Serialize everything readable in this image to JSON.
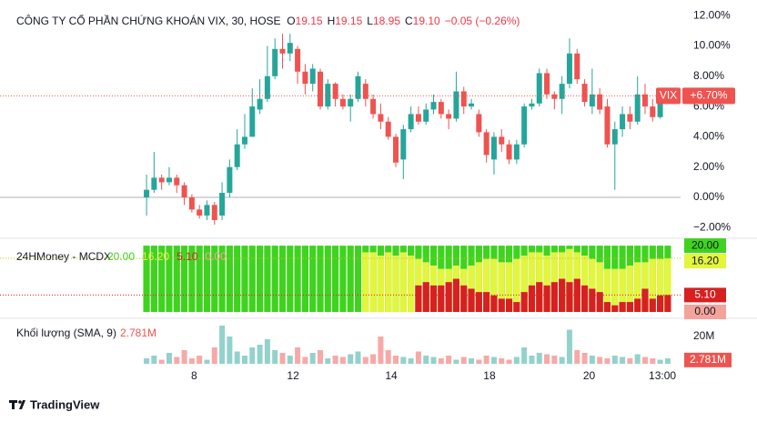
{
  "header": {
    "title": "CÔNG TY CỔ PHẦN CHỨNG KHOÁN VIX, 30, HOSE",
    "ohlc": [
      {
        "label": "O",
        "value": "19.15"
      },
      {
        "label": "H",
        "value": "19.15"
      },
      {
        "label": "L",
        "value": "18.95"
      },
      {
        "label": "C",
        "value": "19.10"
      }
    ],
    "change": "−0.05 (−0.26%)"
  },
  "chart_data": [
    {
      "type": "candlestick",
      "symbol": "VIX",
      "up_color": "#26a69a",
      "down_color": "#ef5350",
      "open": [
        0.0,
        0.5,
        1.3,
        1.0,
        1.3,
        0.8,
        0.0,
        -0.8,
        -1.2,
        -0.5,
        -1.2,
        0.3,
        2.0,
        3.5,
        4.0,
        5.8,
        6.5,
        8.0,
        9.8,
        9.5,
        9.8,
        8.3,
        7.5,
        8.3,
        6.0,
        7.5,
        6.5,
        6.0,
        6.5,
        7.5,
        6.5,
        5.5,
        5.0,
        4.0,
        2.5,
        4.5,
        5.5,
        5.0,
        5.8,
        6.3,
        5.5,
        5.2,
        7.0,
        6.0,
        5.5,
        4.3,
        2.5,
        4.0,
        3.5,
        2.5,
        3.5,
        6.0,
        6.2,
        8.2,
        6.8,
        6.5,
        7.5,
        9.5,
        7.5,
        6.0,
        6.8,
        6.0,
        3.5,
        4.5,
        5.5,
        5.0,
        6.8,
        6.0,
        5.3,
        6.5
      ],
      "high": [
        1.5,
        3.0,
        1.5,
        2.0,
        1.5,
        1.0,
        0.2,
        -0.5,
        -0.2,
        -0.3,
        1.0,
        2.5,
        4.5,
        5.5,
        7.2,
        7.8,
        10.0,
        10.5,
        10.8,
        10.8,
        10.0,
        8.8,
        8.8,
        8.5,
        7.8,
        7.6,
        6.8,
        6.8,
        8.3,
        7.8,
        6.8,
        6.2,
        5.3,
        4.2,
        4.8,
        6.0,
        6.0,
        6.2,
        6.8,
        6.5,
        5.8,
        8.3,
        7.3,
        6.5,
        5.8,
        4.5,
        4.3,
        4.5,
        3.8,
        3.8,
        6.2,
        6.5,
        8.5,
        8.5,
        7.0,
        8.0,
        10.5,
        9.8,
        7.8,
        8.5,
        7.2,
        6.5,
        5.0,
        6.0,
        6.0,
        8.0,
        7.5,
        6.5,
        7.0,
        7.0
      ],
      "low": [
        -1.2,
        0.3,
        0.5,
        0.8,
        0.3,
        -0.5,
        -1.0,
        -1.4,
        -1.5,
        -1.8,
        -1.5,
        0.0,
        1.8,
        3.2,
        4.0,
        5.5,
        6.3,
        7.8,
        8.5,
        9.0,
        7.5,
        6.8,
        7.0,
        5.8,
        5.8,
        6.0,
        5.8,
        5.0,
        6.3,
        6.0,
        5.2,
        4.5,
        3.8,
        2.0,
        1.2,
        4.3,
        4.8,
        4.8,
        5.5,
        5.2,
        4.5,
        5.0,
        5.5,
        5.8,
        4.0,
        2.3,
        1.5,
        3.0,
        2.2,
        2.2,
        3.3,
        5.8,
        6.0,
        6.5,
        5.8,
        5.5,
        7.2,
        7.5,
        6.0,
        5.5,
        5.5,
        3.3,
        0.5,
        4.0,
        4.5,
        4.8,
        5.5,
        5.0,
        5.2,
        6.3
      ],
      "close": [
        0.5,
        1.3,
        1.0,
        1.3,
        0.8,
        0.0,
        -0.8,
        -1.2,
        -0.5,
        -1.5,
        0.3,
        2.0,
        3.5,
        4.0,
        6.0,
        6.5,
        8.0,
        9.8,
        9.5,
        10.2,
        8.3,
        7.5,
        8.5,
        6.0,
        7.5,
        6.5,
        6.0,
        6.5,
        8.0,
        6.5,
        5.5,
        5.0,
        4.0,
        2.3,
        4.5,
        5.5,
        5.0,
        5.8,
        6.3,
        5.5,
        5.2,
        7.0,
        6.0,
        6.2,
        4.3,
        2.8,
        4.0,
        3.5,
        2.5,
        3.5,
        6.0,
        6.2,
        8.2,
        6.8,
        6.5,
        7.5,
        9.5,
        7.8,
        6.3,
        6.8,
        5.8,
        3.5,
        4.5,
        5.5,
        5.0,
        6.8,
        6.0,
        5.3,
        6.5,
        6.7
      ],
      "ylim": [
        -2.46,
        12.43
      ],
      "yticks": [
        {
          "value": 12,
          "label": "12.00%"
        },
        {
          "value": 10,
          "label": "10.00%"
        },
        {
          "value": 8,
          "label": "8.00%"
        },
        {
          "value": 6,
          "label": "6.00%"
        },
        {
          "value": 4,
          "label": "4.00%"
        },
        {
          "value": 2,
          "label": "2.00%"
        },
        {
          "value": 0,
          "label": "0.00%"
        },
        {
          "value": -2,
          "label": "−2.00%"
        }
      ],
      "xlim": [
        -19.4,
        70.7
      ],
      "xticks": [
        {
          "value": 6.3,
          "label": "8"
        },
        {
          "value": 19.4,
          "label": "12"
        },
        {
          "value": 32.4,
          "label": "14"
        },
        {
          "value": 45.4,
          "label": "18"
        },
        {
          "value": 58.6,
          "label": "20"
        },
        {
          "value": 68.3,
          "label": "13:00"
        }
      ],
      "last": {
        "value": 6.7,
        "label": "+6.70%"
      }
    },
    {
      "type": "bar",
      "title": "24HMoney - MCDX",
      "ylim": [
        0,
        20.3
      ],
      "series": [
        {
          "color": "#3fd31f",
          "values": [
            20,
            20,
            20,
            20,
            20,
            20,
            20,
            20,
            20,
            20,
            20,
            20,
            20,
            20,
            20,
            20,
            20,
            20,
            20,
            20,
            20,
            20,
            20,
            20,
            20,
            20,
            20,
            20,
            20,
            20,
            20,
            20,
            20,
            20,
            20,
            20,
            20,
            20,
            20,
            20,
            20,
            20,
            20,
            20,
            20,
            20,
            20,
            20,
            20,
            20,
            20,
            20,
            20,
            20,
            20,
            20,
            20,
            20,
            20,
            20,
            20,
            20,
            20,
            20,
            20,
            20,
            20,
            20,
            20,
            20
          ]
        },
        {
          "color": "#e3f53c",
          "values": [
            0,
            0,
            0,
            0,
            0,
            0,
            0,
            0,
            0,
            0,
            0,
            0,
            0,
            0,
            0,
            0,
            0,
            0,
            0,
            0,
            0,
            0,
            0,
            0,
            0,
            0,
            0,
            0,
            0,
            18,
            18,
            17,
            18,
            17,
            18,
            17,
            16,
            15,
            14,
            13,
            13,
            14,
            13,
            14,
            15,
            16,
            16,
            15,
            15,
            16,
            17,
            18,
            18,
            17,
            18,
            18,
            19,
            18,
            17,
            16,
            15,
            13,
            13,
            13,
            14,
            15,
            15,
            16,
            16,
            16.2
          ]
        },
        {
          "color": "#d82020",
          "values": [
            0,
            0,
            0,
            0,
            0,
            0,
            0,
            0,
            0,
            0,
            0,
            0,
            0,
            0,
            0,
            0,
            0,
            0,
            0,
            0,
            0,
            0,
            0,
            0,
            0,
            0,
            0,
            0,
            0,
            0,
            0,
            0,
            0,
            0,
            0,
            0,
            8,
            9,
            8,
            8,
            9,
            10,
            8,
            7,
            6,
            6,
            5,
            4,
            4,
            3,
            6,
            8,
            9,
            8,
            9,
            10,
            9,
            10,
            8,
            7,
            6,
            3,
            2,
            3,
            3,
            4,
            7,
            4,
            5,
            5.1
          ]
        }
      ],
      "last_values": [
        {
          "value": 20,
          "label": "20.00",
          "color": "#3fd31f"
        },
        {
          "value": 16.2,
          "label": "16.20",
          "color": "#e3f53c"
        },
        {
          "value": 5.1,
          "label": "5.10",
          "color": "#d82020"
        },
        {
          "value": 0,
          "label": "0.00",
          "color": "#f4a39c"
        }
      ]
    },
    {
      "type": "bar",
      "title": "Khối lượng (SMA, 9)",
      "ylim": [
        0,
        30000000
      ],
      "values": [
        4000000.0,
        6000000.0,
        3000000.0,
        8000000.0,
        5000000.0,
        10000000.0,
        4000000.0,
        6000000.0,
        3000000.0,
        12000000.0,
        28000000.0,
        20000000.0,
        9000000.0,
        6000000.0,
        12000000.0,
        14000000.0,
        18000000.0,
        10000000.0,
        8000000.0,
        6000000.0,
        12000000.0,
        5000000.0,
        8000000.0,
        10000000.0,
        4000000.0,
        6000000.0,
        5000000.0,
        7000000.0,
        9000000.0,
        5000000.0,
        7000000.0,
        20000000.0,
        10000000.0,
        6000000.0,
        5000000.0,
        4000000.0,
        9000000.0,
        6000000.0,
        5000000.0,
        4000000.0,
        6000000.0,
        3000000.0,
        5000000.0,
        4000000.0,
        3000000.0,
        6000000.0,
        5000000.0,
        4000000.0,
        3000000.0,
        5000000.0,
        12000000.0,
        6000000.0,
        8000000.0,
        7000000.0,
        6000000.0,
        5000000.0,
        25000000.0,
        10000000.0,
        8000000.0,
        6000000.0,
        5000000.0,
        4000000.0,
        6000000.0,
        5000000.0,
        4000000.0,
        7000000.0,
        5000000.0,
        4000000.0,
        3000000.0,
        4000000.0
      ],
      "yticks": [
        {
          "value": 20000000,
          "label": "20M"
        }
      ],
      "sma_last": {
        "value": 2781000,
        "label": "2.781M"
      }
    }
  ],
  "footer": {
    "brand": "TradingView"
  }
}
